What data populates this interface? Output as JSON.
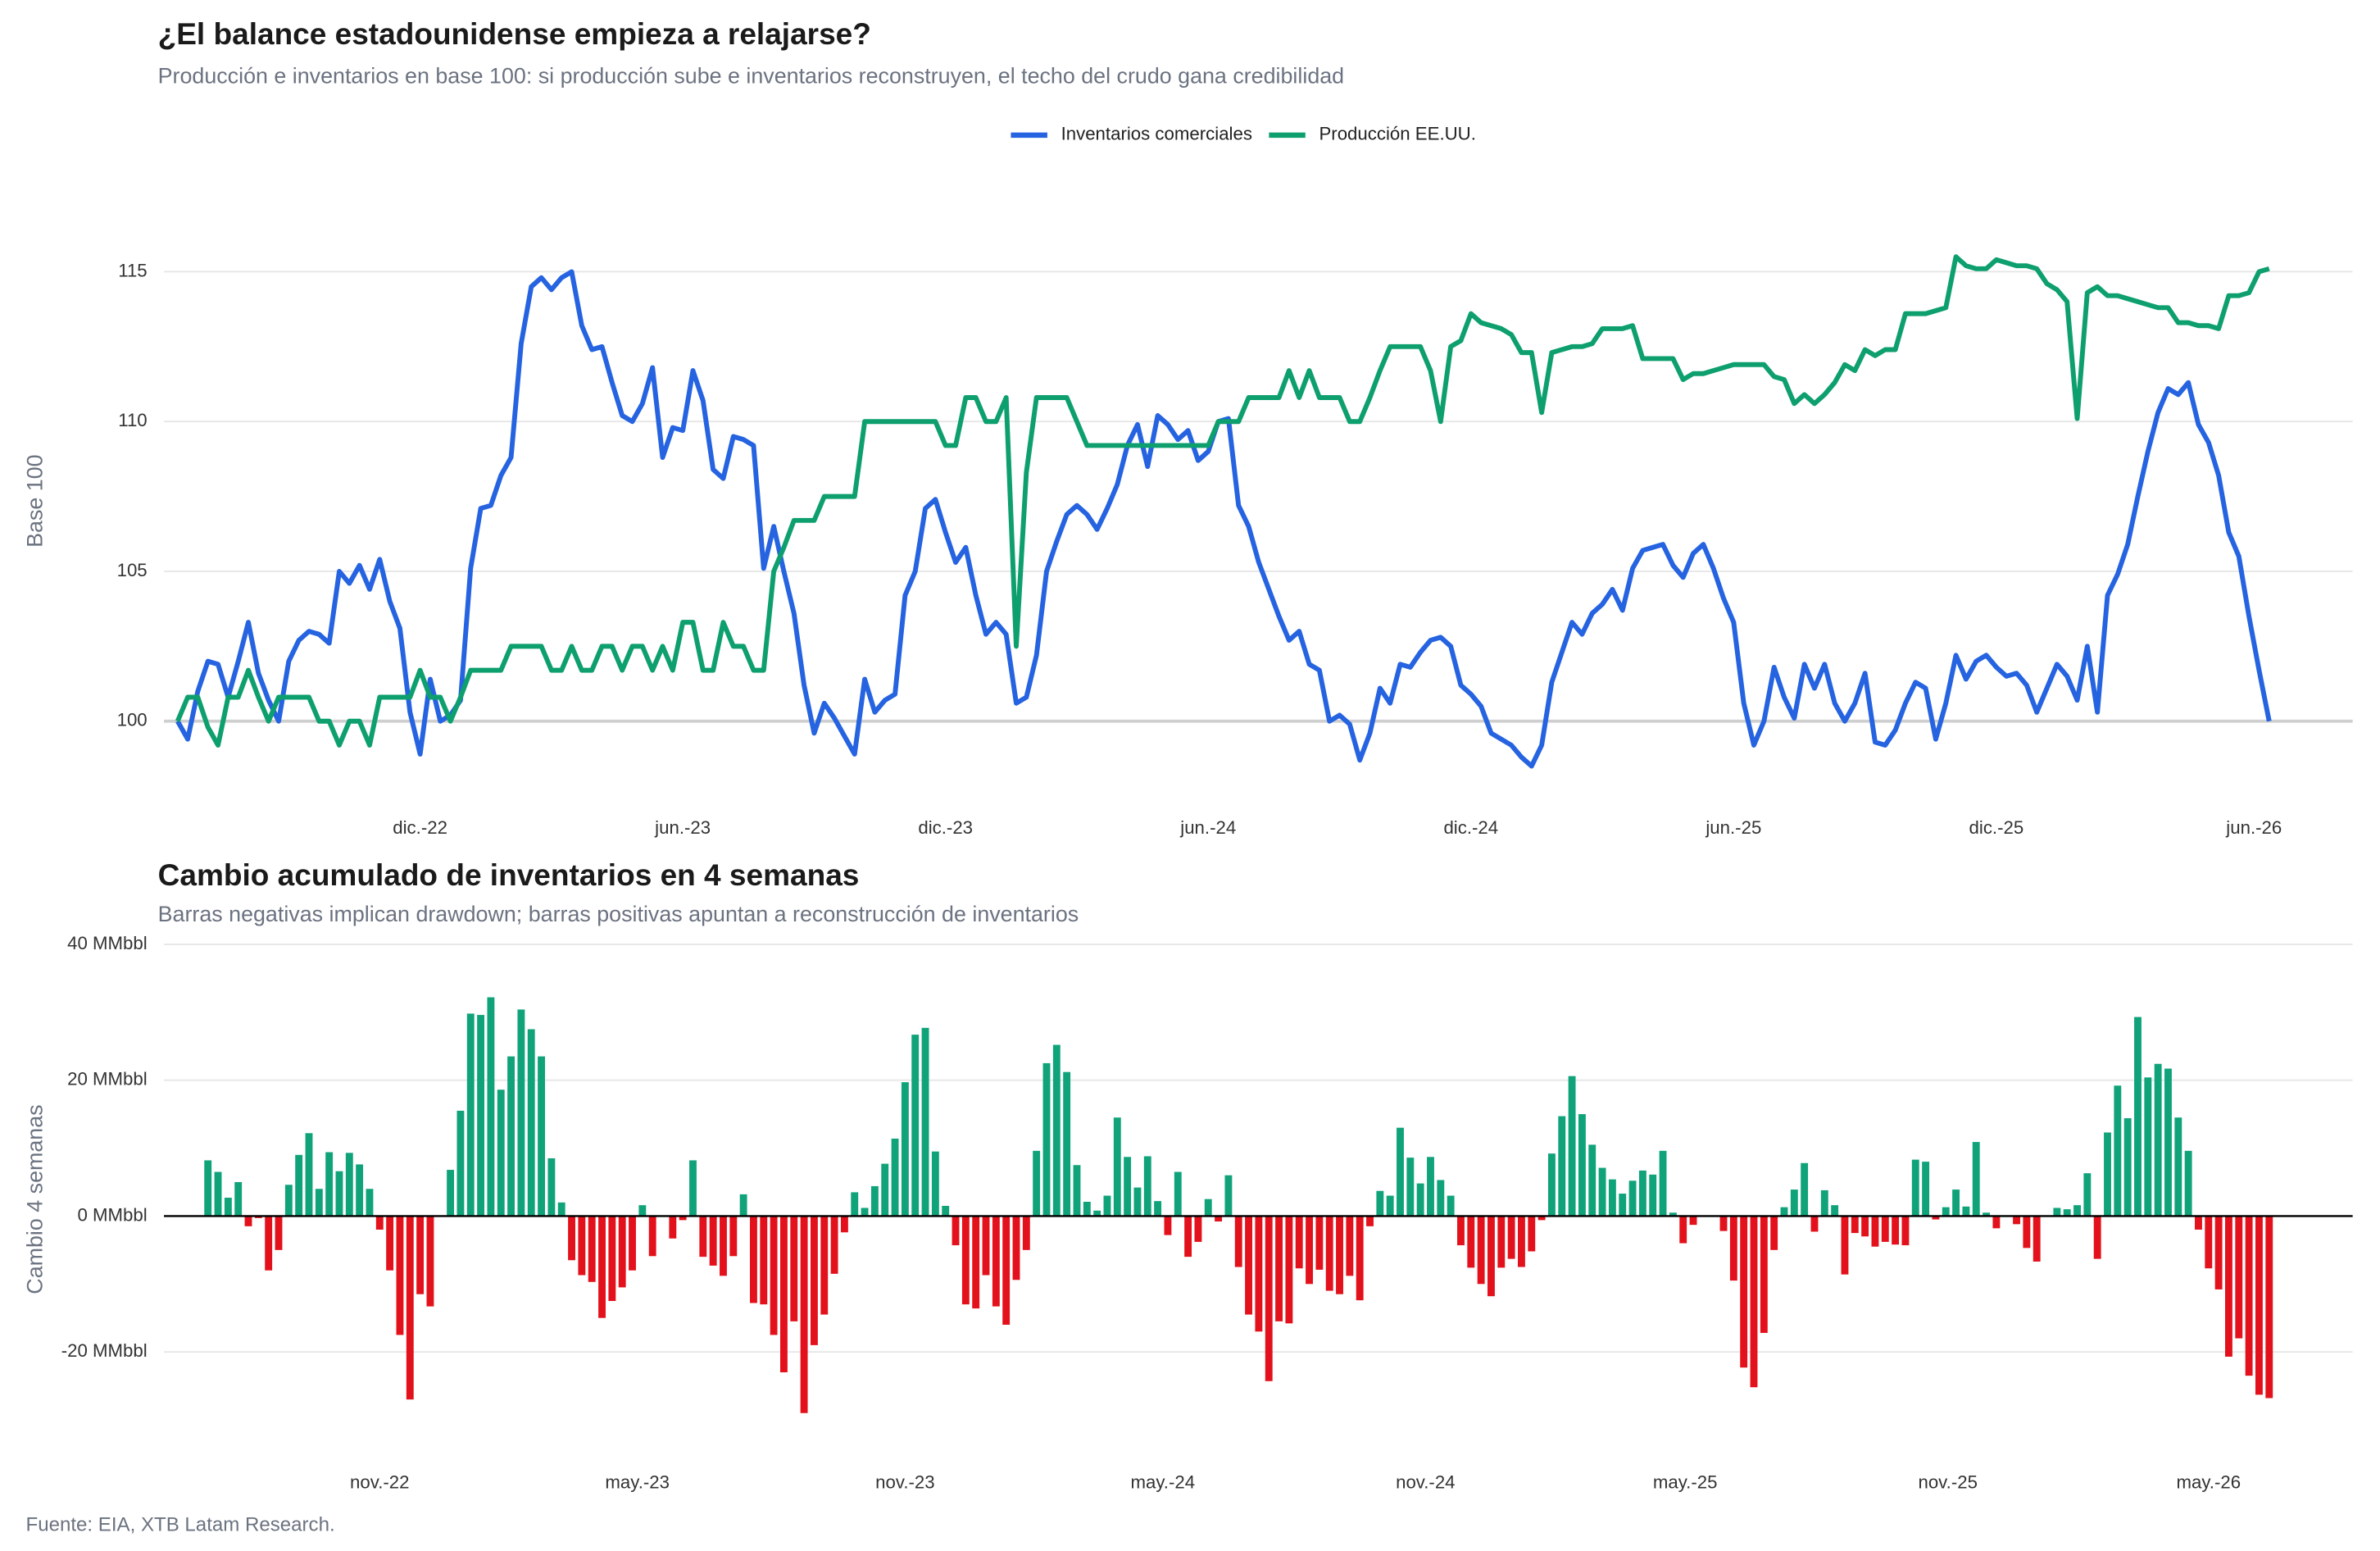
{
  "source": "Fuente: EIA, XTB Latam Research.",
  "chart_data": [
    {
      "type": "line",
      "title": "¿El balance estadounidense empieza a relajarse?",
      "subtitle": "Producción e inventarios en base 100: si producción sube e inventarios reconstruyen, el techo del crudo gana credibilidad",
      "y_label": "Base 100",
      "legend": "top",
      "grid": true,
      "baseline": 100,
      "xlim": [
        0,
        207
      ],
      "xticks": [
        {
          "value": 24,
          "label": "dic.-22"
        },
        {
          "value": 50,
          "label": "jun.-23"
        },
        {
          "value": 76,
          "label": "dic.-23"
        },
        {
          "value": 102,
          "label": "jun.-24"
        },
        {
          "value": 128,
          "label": "dic.-24"
        },
        {
          "value": 154,
          "label": "jun.-25"
        },
        {
          "value": 180,
          "label": "dic.-25"
        },
        {
          "value": 205.5,
          "label": "jun.-26"
        }
      ],
      "ylim": [
        98,
        117
      ],
      "yticks": [
        100,
        105,
        110,
        115
      ],
      "x": [
        0,
        1,
        2,
        3,
        4,
        5,
        6,
        7,
        8,
        9,
        10,
        11,
        12,
        13,
        14,
        15,
        16,
        17,
        18,
        19,
        20,
        21,
        22,
        23,
        24,
        25,
        26,
        27,
        28,
        29,
        30,
        31,
        32,
        33,
        34,
        35,
        36,
        37,
        38,
        39,
        40,
        41,
        42,
        43,
        44,
        45,
        46,
        47,
        48,
        49,
        50,
        51,
        52,
        53,
        54,
        55,
        56,
        57,
        58,
        59,
        60,
        61,
        62,
        63,
        64,
        65,
        66,
        67,
        68,
        69,
        70,
        71,
        72,
        73,
        74,
        75,
        76,
        77,
        78,
        79,
        80,
        81,
        82,
        83,
        84,
        85,
        86,
        87,
        88,
        89,
        90,
        91,
        92,
        93,
        94,
        95,
        96,
        97,
        98,
        99,
        100,
        101,
        102,
        103,
        104,
        105,
        106,
        107,
        108,
        109,
        110,
        111,
        112,
        113,
        114,
        115,
        116,
        117,
        118,
        119,
        120,
        121,
        122,
        123,
        124,
        125,
        126,
        127,
        128,
        129,
        130,
        131,
        132,
        133,
        134,
        135,
        136,
        137,
        138,
        139,
        140,
        141,
        142,
        143,
        144,
        145,
        146,
        147,
        148,
        149,
        150,
        151,
        152,
        153,
        154,
        155,
        156,
        157,
        158,
        159,
        160,
        161,
        162,
        163,
        164,
        165,
        166,
        167,
        168,
        169,
        170,
        171,
        172,
        173,
        174,
        175,
        176,
        177,
        178,
        179,
        180,
        181,
        182,
        183,
        184,
        185,
        186,
        187,
        188,
        189,
        190,
        191,
        192,
        193,
        194,
        195,
        196,
        197,
        198,
        199,
        200,
        201,
        202,
        203,
        204,
        205,
        206,
        207
      ],
      "series": [
        {
          "name": "Inventarios comerciales",
          "color": "#2563e0",
          "values": [
            100,
            99.4,
            101,
            102,
            101.9,
            100.8,
            102,
            103.3,
            101.6,
            100.7,
            100,
            102,
            102.7,
            103,
            102.9,
            102.6,
            105,
            104.6,
            105.2,
            104.4,
            105.4,
            104,
            103.1,
            100.3,
            98.9,
            101.4,
            100,
            100.2,
            100.7,
            105.1,
            107.1,
            107.2,
            108.2,
            108.8,
            112.6,
            114.5,
            114.8,
            114.4,
            114.8,
            115,
            113.2,
            112.4,
            112.5,
            111.3,
            110.2,
            110,
            110.6,
            111.8,
            108.8,
            109.8,
            109.7,
            111.7,
            110.7,
            108.4,
            108.1,
            109.5,
            109.4,
            109.2,
            105.1,
            106.5,
            105,
            103.6,
            101.2,
            99.6,
            100.6,
            100.1,
            99.5,
            98.9,
            101.4,
            100.3,
            100.7,
            100.9,
            104.2,
            105,
            107.1,
            107.4,
            106.3,
            105.3,
            105.8,
            104.2,
            102.9,
            103.3,
            102.9,
            100.6,
            100.8,
            102.2,
            105,
            106,
            106.9,
            107.2,
            106.9,
            106.4,
            107.1,
            107.9,
            109.2,
            109.9,
            108.5,
            110.2,
            109.9,
            109.4,
            109.7,
            108.7,
            109,
            110,
            110.1,
            107.2,
            106.5,
            105.3,
            104.4,
            103.5,
            102.7,
            103,
            101.9,
            101.7,
            100,
            100.2,
            99.9,
            98.7,
            99.6,
            101.1,
            100.6,
            101.9,
            101.8,
            102.3,
            102.7,
            102.8,
            102.5,
            101.2,
            100.9,
            100.5,
            99.6,
            99.4,
            99.2,
            98.8,
            98.5,
            99.2,
            101.3,
            102.3,
            103.3,
            102.9,
            103.6,
            103.9,
            104.4,
            103.7,
            105.1,
            105.7,
            105.8,
            105.9,
            105.2,
            104.8,
            105.6,
            105.9,
            105.1,
            104.1,
            103.3,
            100.6,
            99.2,
            100,
            101.8,
            100.8,
            100.1,
            101.9,
            101.1,
            101.9,
            100.6,
            100,
            100.6,
            101.6,
            99.3,
            99.2,
            99.7,
            100.6,
            101.3,
            101.1,
            99.4,
            100.6,
            102.2,
            101.4,
            102,
            102.2,
            101.8,
            101.5,
            101.6,
            101.2,
            100.3,
            101.1,
            101.9,
            101.5,
            100.7,
            102.5,
            100.3,
            104.2,
            104.9,
            105.9,
            107.5,
            109,
            110.3,
            111.1,
            110.9,
            111.3,
            109.9,
            109.3,
            108.2,
            106.3,
            105.5,
            103.5,
            101.7,
            100
          ]
        },
        {
          "name": "Producción EE.UU.",
          "color": "#0e9f6e",
          "values": [
            100,
            100.8,
            100.8,
            99.8,
            99.2,
            100.8,
            100.8,
            101.7,
            100.8,
            100,
            100.8,
            100.8,
            100.8,
            100.8,
            100,
            100,
            99.2,
            100,
            100,
            99.2,
            100.8,
            100.8,
            100.8,
            100.8,
            101.7,
            100.8,
            100.8,
            100,
            100.8,
            101.7,
            101.7,
            101.7,
            101.7,
            102.5,
            102.5,
            102.5,
            102.5,
            101.7,
            101.7,
            102.5,
            101.7,
            101.7,
            102.5,
            102.5,
            101.7,
            102.5,
            102.5,
            101.7,
            102.5,
            101.7,
            103.3,
            103.3,
            101.7,
            101.7,
            103.3,
            102.5,
            102.5,
            101.7,
            101.7,
            105,
            105.8,
            106.7,
            106.7,
            106.7,
            107.5,
            107.5,
            107.5,
            107.5,
            110,
            110,
            110,
            110,
            110,
            110,
            110,
            110,
            109.2,
            109.2,
            110.8,
            110.8,
            110,
            110,
            110.8,
            102.5,
            108.3,
            110.8,
            110.8,
            110.8,
            110.8,
            110,
            109.2,
            109.2,
            109.2,
            109.2,
            109.2,
            109.2,
            109.2,
            109.2,
            109.2,
            109.2,
            109.2,
            109.2,
            109.2,
            110,
            110,
            110,
            110.8,
            110.8,
            110.8,
            110.8,
            111.7,
            110.8,
            111.7,
            110.8,
            110.8,
            110.8,
            110,
            110,
            110.8,
            111.7,
            112.5,
            112.5,
            112.5,
            112.5,
            111.7,
            110,
            112.5,
            112.7,
            113.6,
            113.3,
            113.2,
            113.1,
            112.9,
            112.3,
            112.3,
            110.3,
            112.3,
            112.4,
            112.5,
            112.5,
            112.6,
            113.1,
            113.1,
            113.1,
            113.2,
            112.1,
            112.1,
            112.1,
            112.1,
            111.4,
            111.6,
            111.6,
            111.7,
            111.8,
            111.9,
            111.9,
            111.9,
            111.9,
            111.5,
            111.4,
            110.6,
            110.9,
            110.6,
            110.9,
            111.3,
            111.9,
            111.7,
            112.4,
            112.2,
            112.4,
            112.4,
            113.6,
            113.6,
            113.6,
            113.7,
            113.8,
            115.5,
            115.2,
            115.1,
            115.1,
            115.4,
            115.3,
            115.2,
            115.2,
            115.1,
            114.6,
            114.4,
            114,
            110.1,
            114.3,
            114.5,
            114.2,
            114.2,
            114.1,
            114,
            113.9,
            113.8,
            113.8,
            113.3,
            113.3,
            113.2,
            113.2,
            113.1,
            114.2,
            114.2,
            114.3,
            115,
            115.1
          ]
        }
      ]
    },
    {
      "type": "bar",
      "title": "Cambio acumulado de inventarios en 4 semanas",
      "subtitle": "Barras negativas implican drawdown; barras positivas apuntan a reconstrucción de inventarios",
      "y_label": "Cambio 4 semanas",
      "grid": true,
      "positive_color": "#10a37a",
      "negative_color": "#e3111b",
      "xlim": [
        0,
        207
      ],
      "xticks": [
        {
          "value": 20,
          "label": "nov.-22"
        },
        {
          "value": 45.5,
          "label": "may.-23"
        },
        {
          "value": 72,
          "label": "nov.-23"
        },
        {
          "value": 97.5,
          "label": "may.-24"
        },
        {
          "value": 123.5,
          "label": "nov.-24"
        },
        {
          "value": 149.2,
          "label": "may.-25"
        },
        {
          "value": 175.2,
          "label": "nov.-25"
        },
        {
          "value": 201,
          "label": "may.-26"
        }
      ],
      "ylim": [
        -35,
        41
      ],
      "yticks": [
        {
          "value": 40,
          "label": "40 MMbbl"
        },
        {
          "value": 20,
          "label": "20 MMbbl"
        },
        {
          "value": 0,
          "label": "0 MMbbl"
        },
        {
          "value": -20,
          "label": "-20 MMbbl"
        }
      ],
      "x": [
        3,
        4,
        5,
        6,
        7,
        8,
        9,
        10,
        11,
        12,
        13,
        14,
        15,
        16,
        17,
        18,
        19,
        20,
        21,
        22,
        23,
        24,
        25,
        26,
        27,
        28,
        29,
        30,
        31,
        32,
        33,
        34,
        35,
        36,
        37,
        38,
        39,
        40,
        41,
        42,
        43,
        44,
        45,
        46,
        47,
        48,
        49,
        50,
        51,
        52,
        53,
        54,
        55,
        56,
        57,
        58,
        59,
        60,
        61,
        62,
        63,
        64,
        65,
        66,
        67,
        68,
        69,
        70,
        71,
        72,
        73,
        74,
        75,
        76,
        77,
        78,
        79,
        80,
        81,
        82,
        83,
        84,
        85,
        86,
        87,
        88,
        89,
        90,
        91,
        92,
        93,
        94,
        95,
        96,
        97,
        98,
        99,
        100,
        101,
        102,
        103,
        104,
        105,
        106,
        107,
        108,
        109,
        110,
        111,
        112,
        113,
        114,
        115,
        116,
        117,
        118,
        119,
        120,
        121,
        122,
        123,
        124,
        125,
        126,
        127,
        128,
        129,
        130,
        131,
        132,
        133,
        134,
        135,
        136,
        137,
        138,
        139,
        140,
        141,
        142,
        143,
        144,
        145,
        146,
        147,
        148,
        149,
        150,
        151,
        152,
        153,
        154,
        155,
        156,
        157,
        158,
        159,
        160,
        161,
        162,
        163,
        164,
        165,
        166,
        167,
        168,
        169,
        170,
        171,
        172,
        173,
        174,
        175,
        176,
        177,
        178,
        179,
        180,
        181,
        182,
        183,
        184,
        185,
        186,
        187,
        188,
        189,
        190,
        191,
        192,
        193,
        194,
        195,
        196,
        197,
        198,
        199,
        200,
        201,
        202,
        203,
        204,
        205,
        206,
        207
      ],
      "values": [
        8.2,
        6.5,
        2.7,
        5,
        -1.5,
        -0.3,
        -8,
        -5,
        4.6,
        9,
        12.2,
        4,
        9.4,
        6.6,
        9.3,
        7.6,
        4,
        -2,
        -8,
        -17.5,
        -27,
        -11.5,
        -13.3,
        0,
        6.8,
        15.5,
        29.8,
        29.6,
        32.2,
        18.6,
        23.5,
        30.4,
        27.5,
        23.5,
        8.5,
        2,
        -6.5,
        -8.7,
        -9.7,
        -15,
        -12.5,
        -10.5,
        -8,
        1.6,
        -5.9,
        0,
        -3.3,
        -0.6,
        8.2,
        -6,
        -7.3,
        -8.8,
        -5.9,
        3.2,
        -12.8,
        -13,
        -17.5,
        -23,
        -15.5,
        -29,
        -19,
        -14.5,
        -8.5,
        -2.4,
        3.5,
        1.2,
        4.4,
        7.7,
        11.4,
        19.7,
        26.7,
        27.7,
        9.5,
        1.5,
        -4.3,
        -13,
        -13.6,
        -8.7,
        -13.3,
        -16,
        -9.4,
        -5,
        9.6,
        22.5,
        25.2,
        21.2,
        7.5,
        2.1,
        0.8,
        3,
        14.5,
        8.7,
        4.2,
        8.8,
        2.2,
        -2.8,
        6.5,
        -6,
        -3.8,
        2.5,
        -0.8,
        6,
        -7.5,
        -14.5,
        -17,
        -24.3,
        -15.5,
        -15.8,
        -7.7,
        -10,
        -7.9,
        -11,
        -11.5,
        -8.8,
        -12.4,
        -1.5,
        3.7,
        3,
        13,
        8.6,
        4.8,
        8.7,
        5.3,
        3,
        -4.3,
        -7.6,
        -10,
        -11.8,
        -7.6,
        -6.3,
        -7.5,
        -5.2,
        -0.6,
        9.2,
        14.7,
        20.6,
        15,
        10.5,
        7.1,
        5.4,
        3.3,
        5.2,
        6.7,
        6.1,
        9.6,
        0.5,
        -4,
        -1.3,
        0,
        0,
        -2.2,
        -9.5,
        -22.3,
        -25.2,
        -17.2,
        -5,
        1.3,
        3.9,
        7.8,
        -2.3,
        3.8,
        1.6,
        -8.6,
        -2.5,
        -3,
        -4.5,
        -3.8,
        -4.2,
        -4.3,
        8.3,
        8,
        -0.5,
        1.3,
        3.9,
        1.4,
        10.9,
        0.5,
        -1.8,
        0,
        -1.2,
        -4.7,
        -6.7,
        0,
        1.2,
        1,
        1.6,
        6.3,
        -6.3,
        12.3,
        19.2,
        14.4,
        29.3,
        20.4,
        22.4,
        21.7,
        14.5,
        9.6,
        -2,
        -7.7,
        -10.8,
        -20.7,
        -18,
        -23.5,
        -26.3,
        -26.8
      ]
    }
  ]
}
